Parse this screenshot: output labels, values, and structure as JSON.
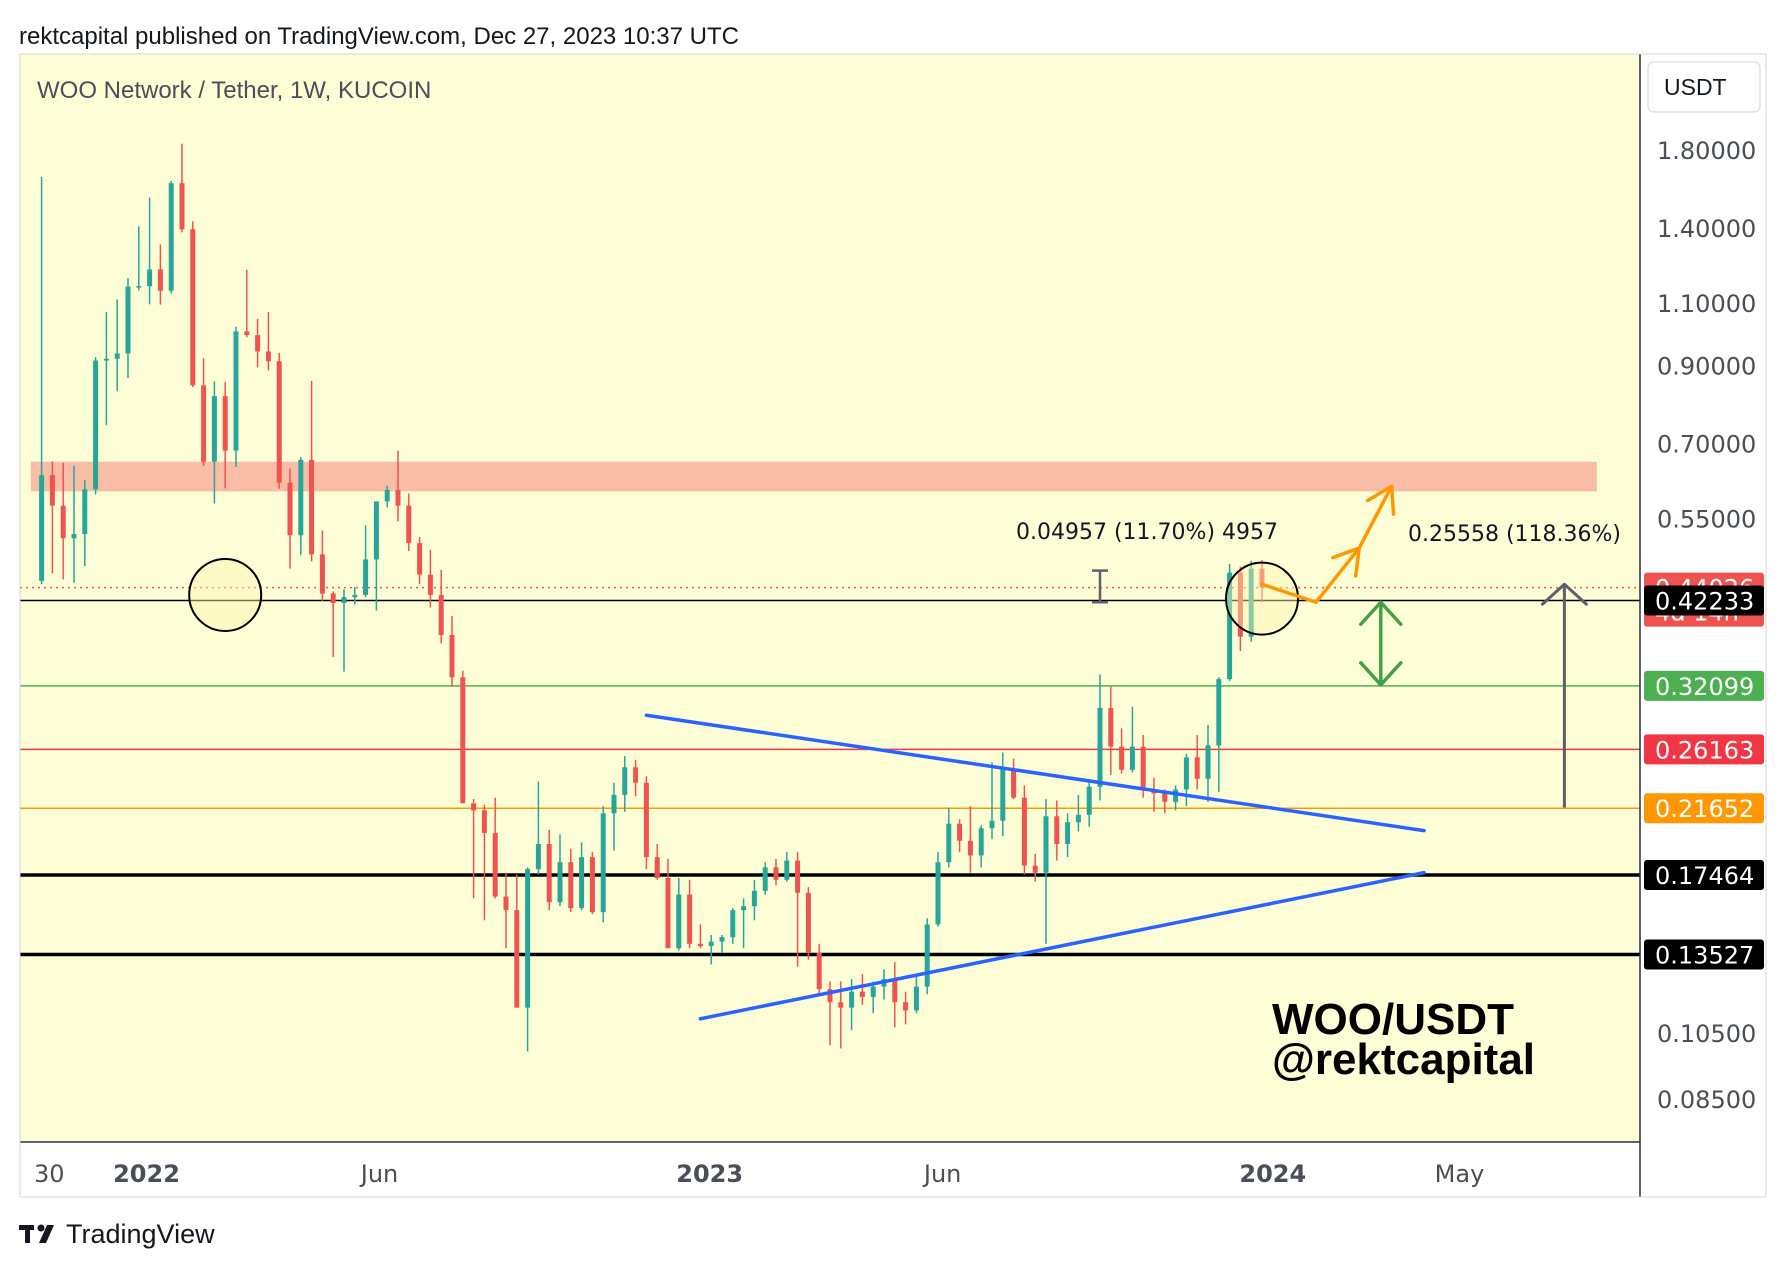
{
  "header": {
    "publisher_line": "rektcapital published on TradingView.com, Dec 27, 2023 10:37 UTC"
  },
  "chart_title": "WOO Network / Tether, 1W, KUCOIN",
  "currency_button": "USDT",
  "watermark": {
    "line1": "WOO/USDT",
    "line2": "@rektcapital"
  },
  "footer": {
    "logo_text": "TradingView"
  },
  "colors": {
    "background": "#fefed6",
    "up_candle": "#26a69a",
    "down_candle": "#ef5350",
    "resistance_zone": "#f8b6a0",
    "triangle": "#2962ff",
    "orange_path": "#ff9800",
    "green_arrow": "#43a047",
    "gray_arrow": "#5d606b"
  },
  "chart_data": {
    "type": "candlestick",
    "title": "WOO Network / Tether, 1W, KUCOIN",
    "interval": "1W",
    "y_scale": "log",
    "ylim": [
      0.074,
      2.45
    ],
    "xlim": [
      "2021-10-11",
      "2024-08-26"
    ],
    "x_ticks": [
      {
        "date": "2021-10-30",
        "label": "30"
      },
      {
        "date": "2022-01-01",
        "label": "2022"
      },
      {
        "date": "2022-06-01",
        "label": "Jun"
      },
      {
        "date": "2023-01-01",
        "label": "2023"
      },
      {
        "date": "2023-06-01",
        "label": "Jun"
      },
      {
        "date": "2024-01-01",
        "label": "2024"
      },
      {
        "date": "2024-05-01",
        "label": "May"
      }
    ],
    "y_ticks": [
      {
        "value": 1.8,
        "label": "1.80000"
      },
      {
        "value": 1.4,
        "label": "1.40000"
      },
      {
        "value": 1.1,
        "label": "1.10000"
      },
      {
        "value": 0.9,
        "label": "0.90000"
      },
      {
        "value": 0.7,
        "label": "0.70000"
      },
      {
        "value": 0.55,
        "label": "0.55000"
      },
      {
        "value": 0.105,
        "label": "0.10500"
      },
      {
        "value": 0.085,
        "label": "0.08500"
      }
    ],
    "price_levels": [
      {
        "value": 0.44026,
        "label": "0.44026",
        "sublabel": "4d 14h",
        "color": "#ef5350",
        "line": "dotted"
      },
      {
        "value": 0.42233,
        "label": "0.42233",
        "color": "#000000",
        "line": "thin"
      },
      {
        "value": 0.32099,
        "label": "0.32099",
        "color": "#4caf50",
        "line": "thin"
      },
      {
        "value": 0.26163,
        "label": "0.26163",
        "color": "#f23645",
        "line": "thin"
      },
      {
        "value": 0.21652,
        "label": "0.21652",
        "color": "#ff9800",
        "line": "thin"
      },
      {
        "value": 0.17464,
        "label": "0.17464",
        "color": "#000000",
        "line": "thick"
      },
      {
        "value": 0.13527,
        "label": "0.13527",
        "color": "#000000",
        "line": "thick"
      }
    ],
    "resistance_zone": {
      "low": 0.6,
      "high": 0.66
    },
    "annotations": {
      "measure_small": "0.04957 (11.70%) 4957",
      "measure_large": "0.25558 (118.36%)"
    },
    "triangle": {
      "upper": [
        [
          "2022-11-21",
          0.292
        ],
        [
          "2024-04-08",
          0.2015
        ]
      ],
      "lower": [
        [
          "2022-12-26",
          0.11
        ],
        [
          "2024-04-08",
          0.176
        ]
      ]
    },
    "circles": [
      {
        "date": "2022-02-21",
        "price": 0.43
      },
      {
        "date": "2023-12-25",
        "price": 0.425
      }
    ],
    "projection_path": [
      [
        "2023-12-25",
        0.445
      ],
      [
        "2024-01-29",
        0.42
      ],
      [
        "2024-02-26",
        0.5
      ],
      [
        "2024-03-18",
        0.61
      ]
    ],
    "green_arrow": {
      "date": "2024-03-11",
      "from": 0.322,
      "to": 0.42
    },
    "gray_arrow": {
      "date": "2024-07-08",
      "from": 0.217,
      "to": 0.445
    },
    "measure_bracket": {
      "date": "2023-09-11",
      "from": 0.42,
      "to": 0.465
    },
    "candles": [
      {
        "t": "2021-10-25",
        "o": 0.45,
        "h": 1.65,
        "l": 0.445,
        "c": 0.632
      },
      {
        "t": "2021-11-01",
        "o": 0.632,
        "h": 0.661,
        "l": 0.461,
        "c": 0.573
      },
      {
        "t": "2021-11-08",
        "o": 0.573,
        "h": 0.658,
        "l": 0.452,
        "c": 0.516
      },
      {
        "t": "2021-11-15",
        "o": 0.516,
        "h": 0.652,
        "l": 0.447,
        "c": 0.523
      },
      {
        "t": "2021-11-22",
        "o": 0.523,
        "h": 0.622,
        "l": 0.472,
        "c": 0.604
      },
      {
        "t": "2021-11-29",
        "o": 0.604,
        "h": 0.924,
        "l": 0.594,
        "c": 0.914
      },
      {
        "t": "2021-12-06",
        "o": 0.914,
        "h": 1.069,
        "l": 0.743,
        "c": 0.919
      },
      {
        "t": "2021-12-13",
        "o": 0.919,
        "h": 1.112,
        "l": 0.828,
        "c": 0.935
      },
      {
        "t": "2021-12-20",
        "o": 0.935,
        "h": 1.191,
        "l": 0.864,
        "c": 1.16
      },
      {
        "t": "2021-12-27",
        "o": 1.16,
        "h": 1.407,
        "l": 1.145,
        "c": 1.161
      },
      {
        "t": "2022-01-03",
        "o": 1.161,
        "h": 1.544,
        "l": 1.095,
        "c": 1.225
      },
      {
        "t": "2022-01-10",
        "o": 1.225,
        "h": 1.328,
        "l": 1.094,
        "c": 1.144
      },
      {
        "t": "2022-01-17",
        "o": 1.144,
        "h": 1.628,
        "l": 1.134,
        "c": 1.617
      },
      {
        "t": "2022-01-24",
        "o": 1.617,
        "h": 1.836,
        "l": 1.38,
        "c": 1.394
      },
      {
        "t": "2022-01-31",
        "o": 1.394,
        "h": 1.43,
        "l": 0.839,
        "c": 0.844
      },
      {
        "t": "2022-02-07",
        "o": 0.844,
        "h": 0.921,
        "l": 0.651,
        "c": 0.66
      },
      {
        "t": "2022-02-14",
        "o": 0.66,
        "h": 0.855,
        "l": 0.577,
        "c": 0.815
      },
      {
        "t": "2022-02-21",
        "o": 0.815,
        "h": 0.853,
        "l": 0.606,
        "c": 0.684
      },
      {
        "t": "2022-02-28",
        "o": 0.684,
        "h": 1.019,
        "l": 0.649,
        "c": 1.004
      },
      {
        "t": "2022-03-07",
        "o": 1.004,
        "h": 1.224,
        "l": 0.985,
        "c": 0.992
      },
      {
        "t": "2022-03-14",
        "o": 0.992,
        "h": 1.045,
        "l": 0.894,
        "c": 0.941
      },
      {
        "t": "2022-03-21",
        "o": 0.941,
        "h": 1.068,
        "l": 0.885,
        "c": 0.912
      },
      {
        "t": "2022-03-28",
        "o": 0.912,
        "h": 0.937,
        "l": 0.605,
        "c": 0.617
      },
      {
        "t": "2022-04-04",
        "o": 0.617,
        "h": 0.646,
        "l": 0.468,
        "c": 0.521
      },
      {
        "t": "2022-04-11",
        "o": 0.521,
        "h": 0.67,
        "l": 0.489,
        "c": 0.664
      },
      {
        "t": "2022-04-18",
        "o": 0.664,
        "h": 0.856,
        "l": 0.479,
        "c": 0.49
      },
      {
        "t": "2022-04-25",
        "o": 0.49,
        "h": 0.529,
        "l": 0.422,
        "c": 0.432
      },
      {
        "t": "2022-05-02",
        "o": 0.432,
        "h": 0.435,
        "l": 0.352,
        "c": 0.419
      },
      {
        "t": "2022-05-09",
        "o": 0.419,
        "h": 0.438,
        "l": 0.336,
        "c": 0.427
      },
      {
        "t": "2022-05-16",
        "o": 0.427,
        "h": 0.441,
        "l": 0.417,
        "c": 0.43
      },
      {
        "t": "2022-05-23",
        "o": 0.43,
        "h": 0.538,
        "l": 0.427,
        "c": 0.482
      },
      {
        "t": "2022-05-30",
        "o": 0.482,
        "h": 0.575,
        "l": 0.409,
        "c": 0.581
      },
      {
        "t": "2022-06-06",
        "o": 0.581,
        "h": 0.611,
        "l": 0.57,
        "c": 0.603
      },
      {
        "t": "2022-06-13",
        "o": 0.603,
        "h": 0.684,
        "l": 0.545,
        "c": 0.573
      },
      {
        "t": "2022-06-20",
        "o": 0.573,
        "h": 0.596,
        "l": 0.495,
        "c": 0.508
      },
      {
        "t": "2022-06-27",
        "o": 0.508,
        "h": 0.518,
        "l": 0.445,
        "c": 0.459
      },
      {
        "t": "2022-07-04",
        "o": 0.459,
        "h": 0.497,
        "l": 0.413,
        "c": 0.43
      },
      {
        "t": "2022-07-11",
        "o": 0.43,
        "h": 0.466,
        "l": 0.368,
        "c": 0.378
      },
      {
        "t": "2022-07-18",
        "o": 0.378,
        "h": 0.402,
        "l": 0.32,
        "c": 0.33
      },
      {
        "t": "2022-07-25",
        "o": 0.33,
        "h": 0.337,
        "l": 0.22,
        "c": 0.22
      },
      {
        "t": "2022-08-01",
        "o": 0.22,
        "h": 0.223,
        "l": 0.162,
        "c": 0.215
      },
      {
        "t": "2022-08-08",
        "o": 0.215,
        "h": 0.219,
        "l": 0.151,
        "c": 0.2
      },
      {
        "t": "2022-08-15",
        "o": 0.2,
        "h": 0.224,
        "l": 0.162,
        "c": 0.163
      },
      {
        "t": "2022-08-22",
        "o": 0.163,
        "h": 0.176,
        "l": 0.138,
        "c": 0.156
      },
      {
        "t": "2022-08-29",
        "o": 0.156,
        "h": 0.175,
        "l": 0.114,
        "c": 0.114
      },
      {
        "t": "2022-09-05",
        "o": 0.114,
        "h": 0.179,
        "l": 0.099,
        "c": 0.178
      },
      {
        "t": "2022-09-12",
        "o": 0.178,
        "h": 0.236,
        "l": 0.175,
        "c": 0.193
      },
      {
        "t": "2022-09-19",
        "o": 0.193,
        "h": 0.202,
        "l": 0.156,
        "c": 0.16
      },
      {
        "t": "2022-09-26",
        "o": 0.16,
        "h": 0.199,
        "l": 0.158,
        "c": 0.182
      },
      {
        "t": "2022-10-03",
        "o": 0.182,
        "h": 0.19,
        "l": 0.155,
        "c": 0.157
      },
      {
        "t": "2022-10-10",
        "o": 0.157,
        "h": 0.194,
        "l": 0.156,
        "c": 0.185
      },
      {
        "t": "2022-10-17",
        "o": 0.185,
        "h": 0.188,
        "l": 0.154,
        "c": 0.155
      },
      {
        "t": "2022-10-24",
        "o": 0.155,
        "h": 0.218,
        "l": 0.15,
        "c": 0.213
      },
      {
        "t": "2022-10-31",
        "o": 0.213,
        "h": 0.235,
        "l": 0.189,
        "c": 0.226
      },
      {
        "t": "2022-11-07",
        "o": 0.226,
        "h": 0.256,
        "l": 0.214,
        "c": 0.247
      },
      {
        "t": "2022-11-14",
        "o": 0.247,
        "h": 0.253,
        "l": 0.225,
        "c": 0.235
      },
      {
        "t": "2022-11-21",
        "o": 0.235,
        "h": 0.24,
        "l": 0.178,
        "c": 0.185
      },
      {
        "t": "2022-11-28",
        "o": 0.185,
        "h": 0.193,
        "l": 0.172,
        "c": 0.173
      },
      {
        "t": "2022-12-05",
        "o": 0.173,
        "h": 0.184,
        "l": 0.138,
        "c": 0.138
      },
      {
        "t": "2022-12-12",
        "o": 0.138,
        "h": 0.173,
        "l": 0.137,
        "c": 0.164
      },
      {
        "t": "2022-12-19",
        "o": 0.164,
        "h": 0.172,
        "l": 0.138,
        "c": 0.14
      },
      {
        "t": "2022-12-26",
        "o": 0.14,
        "h": 0.149,
        "l": 0.138,
        "c": 0.139
      },
      {
        "t": "2023-01-02",
        "o": 0.139,
        "h": 0.144,
        "l": 0.131,
        "c": 0.141
      },
      {
        "t": "2023-01-09",
        "o": 0.141,
        "h": 0.144,
        "l": 0.136,
        "c": 0.143
      },
      {
        "t": "2023-01-16",
        "o": 0.143,
        "h": 0.157,
        "l": 0.14,
        "c": 0.156
      },
      {
        "t": "2023-01-23",
        "o": 0.156,
        "h": 0.162,
        "l": 0.138,
        "c": 0.158
      },
      {
        "t": "2023-01-30",
        "o": 0.158,
        "h": 0.172,
        "l": 0.151,
        "c": 0.166
      },
      {
        "t": "2023-02-06",
        "o": 0.166,
        "h": 0.182,
        "l": 0.164,
        "c": 0.179
      },
      {
        "t": "2023-02-13",
        "o": 0.179,
        "h": 0.184,
        "l": 0.169,
        "c": 0.172
      },
      {
        "t": "2023-02-20",
        "o": 0.172,
        "h": 0.188,
        "l": 0.171,
        "c": 0.183
      },
      {
        "t": "2023-02-27",
        "o": 0.183,
        "h": 0.188,
        "l": 0.13,
        "c": 0.165
      },
      {
        "t": "2023-03-06",
        "o": 0.165,
        "h": 0.168,
        "l": 0.133,
        "c": 0.136
      },
      {
        "t": "2023-03-13",
        "o": 0.136,
        "h": 0.14,
        "l": 0.119,
        "c": 0.121
      },
      {
        "t": "2023-03-20",
        "o": 0.121,
        "h": 0.124,
        "l": 0.101,
        "c": 0.116
      },
      {
        "t": "2023-03-27",
        "o": 0.116,
        "h": 0.124,
        "l": 0.1,
        "c": 0.114
      },
      {
        "t": "2023-04-03",
        "o": 0.114,
        "h": 0.125,
        "l": 0.106,
        "c": 0.12
      },
      {
        "t": "2023-04-10",
        "o": 0.12,
        "h": 0.127,
        "l": 0.115,
        "c": 0.118
      },
      {
        "t": "2023-04-17",
        "o": 0.118,
        "h": 0.124,
        "l": 0.112,
        "c": 0.122
      },
      {
        "t": "2023-04-24",
        "o": 0.122,
        "h": 0.129,
        "l": 0.117,
        "c": 0.125
      },
      {
        "t": "2023-05-01",
        "o": 0.125,
        "h": 0.132,
        "l": 0.107,
        "c": 0.116
      },
      {
        "t": "2023-05-08",
        "o": 0.116,
        "h": 0.12,
        "l": 0.108,
        "c": 0.113
      },
      {
        "t": "2023-05-15",
        "o": 0.113,
        "h": 0.126,
        "l": 0.112,
        "c": 0.122
      },
      {
        "t": "2023-05-22",
        "o": 0.122,
        "h": 0.152,
        "l": 0.119,
        "c": 0.149
      },
      {
        "t": "2023-05-29",
        "o": 0.149,
        "h": 0.188,
        "l": 0.148,
        "c": 0.182
      },
      {
        "t": "2023-06-05",
        "o": 0.182,
        "h": 0.217,
        "l": 0.179,
        "c": 0.206
      },
      {
        "t": "2023-06-12",
        "o": 0.206,
        "h": 0.209,
        "l": 0.188,
        "c": 0.195
      },
      {
        "t": "2023-06-19",
        "o": 0.195,
        "h": 0.218,
        "l": 0.176,
        "c": 0.186
      },
      {
        "t": "2023-06-26",
        "o": 0.186,
        "h": 0.205,
        "l": 0.179,
        "c": 0.203
      },
      {
        "t": "2023-07-03",
        "o": 0.203,
        "h": 0.251,
        "l": 0.196,
        "c": 0.208
      },
      {
        "t": "2023-07-10",
        "o": 0.208,
        "h": 0.259,
        "l": 0.198,
        "c": 0.246
      },
      {
        "t": "2023-07-17",
        "o": 0.246,
        "h": 0.254,
        "l": 0.223,
        "c": 0.224
      },
      {
        "t": "2023-07-24",
        "o": 0.224,
        "h": 0.233,
        "l": 0.175,
        "c": 0.18
      },
      {
        "t": "2023-07-31",
        "o": 0.18,
        "h": 0.187,
        "l": 0.171,
        "c": 0.176
      },
      {
        "t": "2023-08-07",
        "o": 0.176,
        "h": 0.223,
        "l": 0.14,
        "c": 0.211
      },
      {
        "t": "2023-08-14",
        "o": 0.211,
        "h": 0.222,
        "l": 0.183,
        "c": 0.193
      },
      {
        "t": "2023-08-21",
        "o": 0.193,
        "h": 0.213,
        "l": 0.185,
        "c": 0.207
      },
      {
        "t": "2023-08-28",
        "o": 0.207,
        "h": 0.226,
        "l": 0.201,
        "c": 0.212
      },
      {
        "t": "2023-09-04",
        "o": 0.212,
        "h": 0.236,
        "l": 0.204,
        "c": 0.232
      },
      {
        "t": "2023-09-11",
        "o": 0.232,
        "h": 0.333,
        "l": 0.222,
        "c": 0.299
      },
      {
        "t": "2023-09-18",
        "o": 0.299,
        "h": 0.32,
        "l": 0.241,
        "c": 0.264
      },
      {
        "t": "2023-09-25",
        "o": 0.264,
        "h": 0.28,
        "l": 0.242,
        "c": 0.245
      },
      {
        "t": "2023-10-02",
        "o": 0.245,
        "h": 0.3,
        "l": 0.243,
        "c": 0.264
      },
      {
        "t": "2023-10-09",
        "o": 0.264,
        "h": 0.274,
        "l": 0.224,
        "c": 0.23
      },
      {
        "t": "2023-10-16",
        "o": 0.23,
        "h": 0.239,
        "l": 0.214,
        "c": 0.227
      },
      {
        "t": "2023-10-23",
        "o": 0.227,
        "h": 0.23,
        "l": 0.213,
        "c": 0.221
      },
      {
        "t": "2023-10-30",
        "o": 0.221,
        "h": 0.233,
        "l": 0.215,
        "c": 0.23
      },
      {
        "t": "2023-11-06",
        "o": 0.23,
        "h": 0.258,
        "l": 0.218,
        "c": 0.255
      },
      {
        "t": "2023-11-13",
        "o": 0.255,
        "h": 0.274,
        "l": 0.23,
        "c": 0.238
      },
      {
        "t": "2023-11-20",
        "o": 0.238,
        "h": 0.283,
        "l": 0.221,
        "c": 0.265
      },
      {
        "t": "2023-11-27",
        "o": 0.265,
        "h": 0.33,
        "l": 0.228,
        "c": 0.328
      },
      {
        "t": "2023-12-04",
        "o": 0.328,
        "h": 0.475,
        "l": 0.326,
        "c": 0.462
      },
      {
        "t": "2023-12-11",
        "o": 0.462,
        "h": 0.471,
        "l": 0.359,
        "c": 0.376
      },
      {
        "t": "2023-12-18",
        "o": 0.376,
        "h": 0.48,
        "l": 0.37,
        "c": 0.468
      },
      {
        "t": "2023-12-25",
        "o": 0.468,
        "h": 0.481,
        "l": 0.42,
        "c": 0.4403
      }
    ]
  }
}
